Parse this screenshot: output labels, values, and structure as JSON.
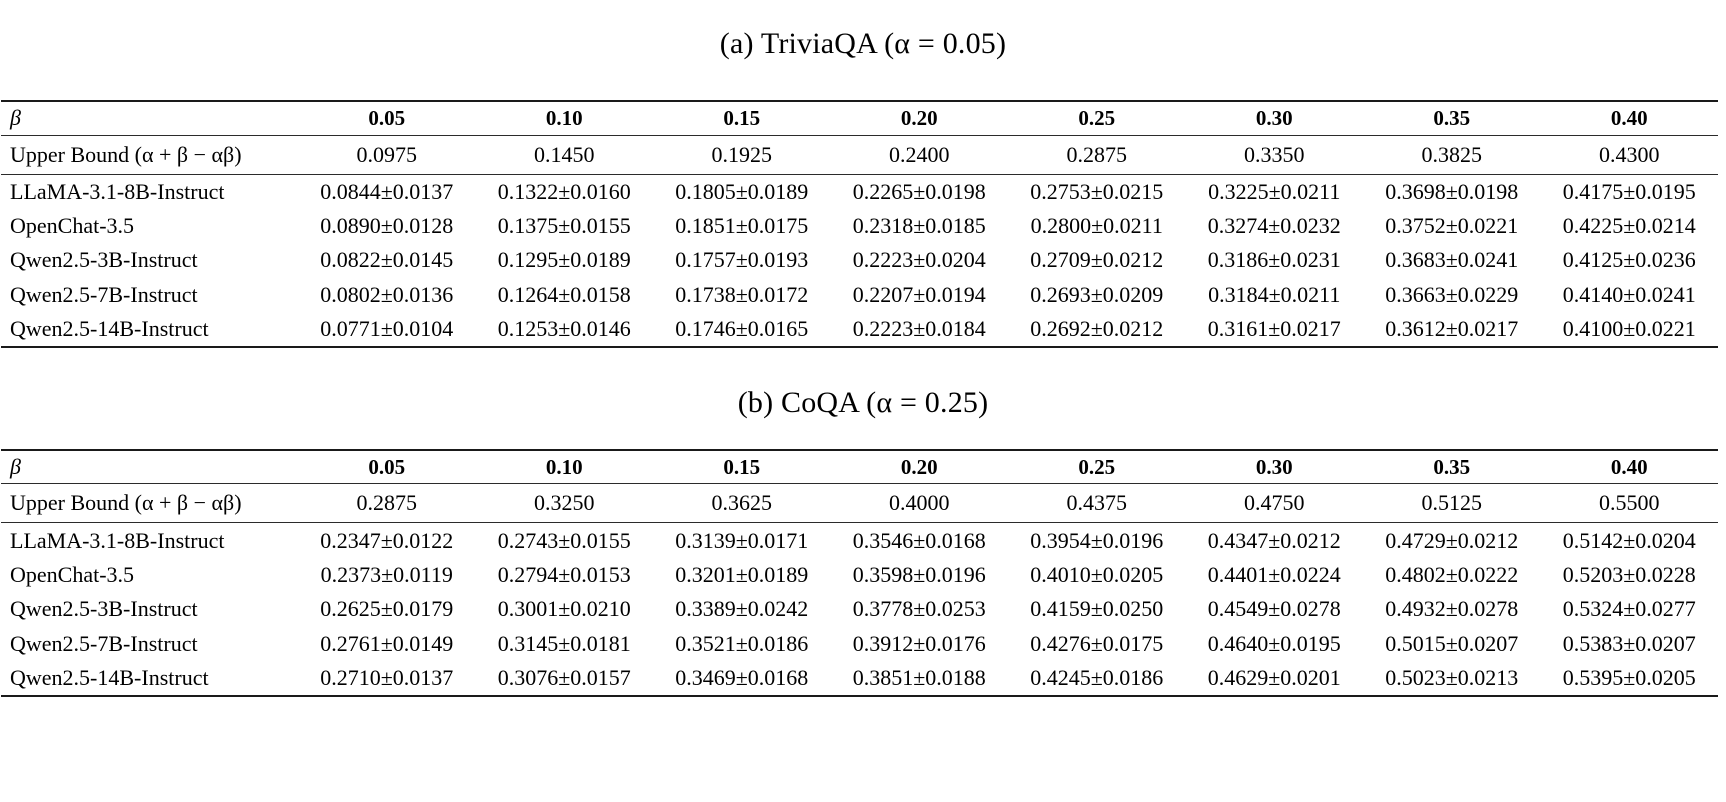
{
  "tables": [
    {
      "title": "(a) TriviaQA (α = 0.05)",
      "beta_label": "β",
      "beta_values": [
        "0.05",
        "0.10",
        "0.15",
        "0.20",
        "0.25",
        "0.30",
        "0.35",
        "0.40"
      ],
      "upper_bound_label": "Upper Bound (α + β − αβ)",
      "upper_bound_values": [
        "0.0975",
        "0.1450",
        "0.1925",
        "0.2400",
        "0.2875",
        "0.3350",
        "0.3825",
        "0.4300"
      ],
      "rows": [
        {
          "model": "LLaMA-3.1-8B-Instruct",
          "values": [
            "0.0844±0.0137",
            "0.1322±0.0160",
            "0.1805±0.0189",
            "0.2265±0.0198",
            "0.2753±0.0215",
            "0.3225±0.0211",
            "0.3698±0.0198",
            "0.4175±0.0195"
          ]
        },
        {
          "model": "OpenChat-3.5",
          "values": [
            "0.0890±0.0128",
            "0.1375±0.0155",
            "0.1851±0.0175",
            "0.2318±0.0185",
            "0.2800±0.0211",
            "0.3274±0.0232",
            "0.3752±0.0221",
            "0.4225±0.0214"
          ]
        },
        {
          "model": "Qwen2.5-3B-Instruct",
          "values": [
            "0.0822±0.0145",
            "0.1295±0.0189",
            "0.1757±0.0193",
            "0.2223±0.0204",
            "0.2709±0.0212",
            "0.3186±0.0231",
            "0.3683±0.0241",
            "0.4125±0.0236"
          ]
        },
        {
          "model": "Qwen2.5-7B-Instruct",
          "values": [
            "0.0802±0.0136",
            "0.1264±0.0158",
            "0.1738±0.0172",
            "0.2207±0.0194",
            "0.2693±0.0209",
            "0.3184±0.0211",
            "0.3663±0.0229",
            "0.4140±0.0241"
          ]
        },
        {
          "model": "Qwen2.5-14B-Instruct",
          "values": [
            "0.0771±0.0104",
            "0.1253±0.0146",
            "0.1746±0.0165",
            "0.2223±0.0184",
            "0.2692±0.0212",
            "0.3161±0.0217",
            "0.3612±0.0217",
            "0.4100±0.0221"
          ]
        }
      ]
    },
    {
      "title": "(b) CoQA (α = 0.25)",
      "beta_label": "β",
      "beta_values": [
        "0.05",
        "0.10",
        "0.15",
        "0.20",
        "0.25",
        "0.30",
        "0.35",
        "0.40"
      ],
      "upper_bound_label": "Upper Bound (α + β − αβ)",
      "upper_bound_values": [
        "0.2875",
        "0.3250",
        "0.3625",
        "0.4000",
        "0.4375",
        "0.4750",
        "0.5125",
        "0.5500"
      ],
      "rows": [
        {
          "model": "LLaMA-3.1-8B-Instruct",
          "values": [
            "0.2347±0.0122",
            "0.2743±0.0155",
            "0.3139±0.0171",
            "0.3546±0.0168",
            "0.3954±0.0196",
            "0.4347±0.0212",
            "0.4729±0.0212",
            "0.5142±0.0204"
          ]
        },
        {
          "model": "OpenChat-3.5",
          "values": [
            "0.2373±0.0119",
            "0.2794±0.0153",
            "0.3201±0.0189",
            "0.3598±0.0196",
            "0.4010±0.0205",
            "0.4401±0.0224",
            "0.4802±0.0222",
            "0.5203±0.0228"
          ]
        },
        {
          "model": "Qwen2.5-3B-Instruct",
          "values": [
            "0.2625±0.0179",
            "0.3001±0.0210",
            "0.3389±0.0242",
            "0.3778±0.0253",
            "0.4159±0.0250",
            "0.4549±0.0278",
            "0.4932±0.0278",
            "0.5324±0.0277"
          ]
        },
        {
          "model": "Qwen2.5-7B-Instruct",
          "values": [
            "0.2761±0.0149",
            "0.3145±0.0181",
            "0.3521±0.0186",
            "0.3912±0.0176",
            "0.4276±0.0175",
            "0.4640±0.0195",
            "0.5015±0.0207",
            "0.5383±0.0207"
          ]
        },
        {
          "model": "Qwen2.5-14B-Instruct",
          "values": [
            "0.2710±0.0137",
            "0.3076±0.0157",
            "0.3469±0.0168",
            "0.3851±0.0188",
            "0.4245±0.0186",
            "0.4629±0.0201",
            "0.5023±0.0213",
            "0.5395±0.0205"
          ]
        }
      ]
    }
  ]
}
